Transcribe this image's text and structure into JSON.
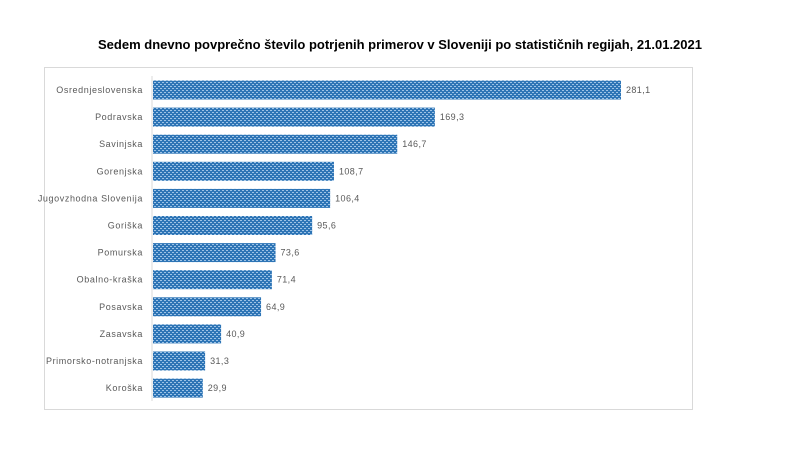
{
  "chart_data": {
    "type": "bar",
    "orientation": "horizontal",
    "title": "Sedem dnevno povprečno število potrjenih primerov v Sloveniji po statističnih regijah, 21.01.2021",
    "xlabel": "",
    "ylabel": "",
    "xlim": [
      0,
      300
    ],
    "grid": false,
    "legend": "none",
    "categories": [
      "Osrednjeslovenska",
      "Podravska",
      "Savinjska",
      "Gorenjska",
      "Jugovzhodna Slovenija",
      "Goriška",
      "Pomurska",
      "Obalno-kraška",
      "Posavska",
      "Zasavska",
      "Primorsko-notranjska",
      "Koroška"
    ],
    "values": [
      281.1,
      169.3,
      146.7,
      108.7,
      106.4,
      95.6,
      73.6,
      71.4,
      64.9,
      40.9,
      31.3,
      29.9
    ],
    "value_labels": [
      "281,1",
      "169,3",
      "146,7",
      "108,7",
      "106,4",
      "95,6",
      "73,6",
      "71,4",
      "64,9",
      "40,9",
      "31,3",
      "29,9"
    ],
    "colors": {
      "bar": "#2E75B6",
      "bar_pattern": "#9DC3E6"
    }
  }
}
